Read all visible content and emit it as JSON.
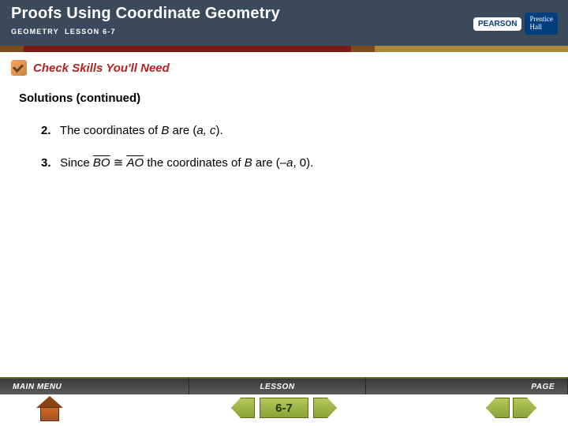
{
  "header": {
    "title": "Proofs Using Coordinate Geometry",
    "subtitle": "GEOMETRY  LESSON 6-7",
    "pearson": "PEARSON",
    "prentice_line1": "Prentice",
    "prentice_line2": "Hall"
  },
  "check_skills": "Check Skills You'll Need",
  "solutions_label": "Solutions (continued)",
  "items": {
    "n2": "2.",
    "t2a": "The coordinates of ",
    "t2b": "B",
    "t2c": " are (",
    "t2d": "a, c",
    "t2e": ").",
    "n3": "3.",
    "t3a": "Since ",
    "t3b": "BO",
    "t3c": " ≅ ",
    "t3d": "AO",
    "t3e": " the coordinates of ",
    "t3f": "B",
    "t3g": " are (–",
    "t3h": "a",
    "t3i": ", 0)."
  },
  "footer": {
    "menu": "MAIN MENU",
    "lesson": "LESSON",
    "page": "PAGE",
    "pagenum": "6-7"
  },
  "colors": {
    "header_bg": "#3a4a5a",
    "check_text": "#b22222",
    "nav_green": "#8ba23a"
  }
}
